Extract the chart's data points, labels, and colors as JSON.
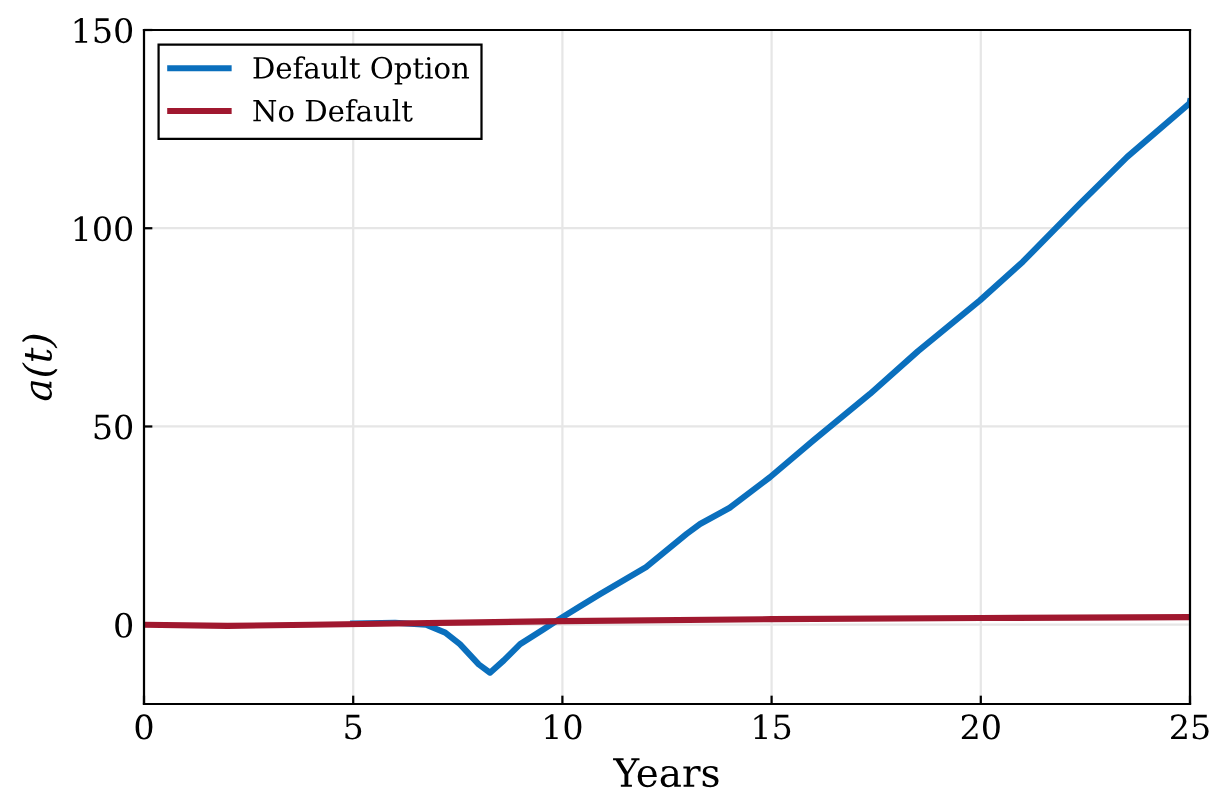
{
  "chart_data": {
    "type": "line",
    "xlabel": "Years",
    "ylabel": "a(t)",
    "xlim": [
      0,
      25
    ],
    "ylim": [
      -20,
      150
    ],
    "xticks": [
      0,
      5,
      10,
      15,
      20,
      25
    ],
    "yticks": [
      0,
      50,
      100,
      150
    ],
    "grid": true,
    "legend": "top left",
    "line_style": "solid",
    "series": [
      {
        "name": "Default Option",
        "color": "#0a6fbd",
        "x": [
          5,
          6,
          6.74,
          7.2,
          7.55,
          8.0,
          8.27,
          8.6,
          8.99,
          9.5,
          9.94,
          10.4,
          10.9,
          12.0,
          12.97,
          13.29,
          14.0,
          14.96,
          16.0,
          17.35,
          18.5,
          19.98,
          21.0,
          22.37,
          23.5,
          24.99,
          25
        ],
        "values": [
          0.3,
          0.5,
          0,
          -2,
          -4.9,
          -10,
          -12.1,
          -9,
          -4.9,
          -1.5,
          1.5,
          4.5,
          7.7,
          14.5,
          22.9,
          25.4,
          29.5,
          37.2,
          46.5,
          58.2,
          69,
          81.8,
          91.5,
          106.2,
          118,
          131.5,
          132
        ]
      },
      {
        "name": "No Default",
        "color": "#a0182f",
        "x": [
          0,
          2,
          4,
          6,
          8,
          10,
          15,
          20,
          25
        ],
        "values": [
          0,
          -0.3,
          0,
          0.3,
          0.6,
          0.9,
          1.4,
          1.7,
          1.9
        ]
      }
    ]
  }
}
